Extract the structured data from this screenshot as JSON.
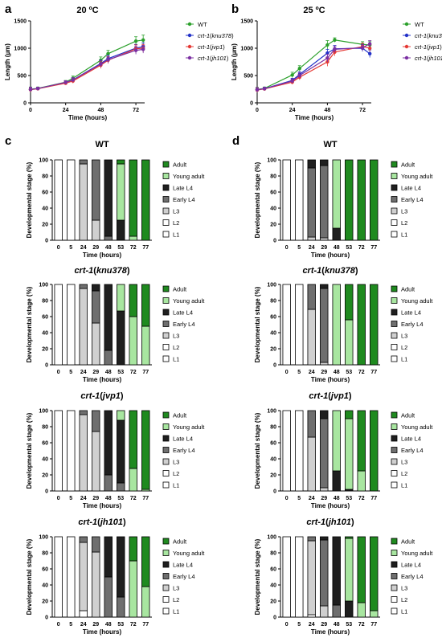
{
  "colors": {
    "wt": "#2ca02c",
    "knu378": "#2231c8",
    "jvp1": "#e53935",
    "jh101": "#7b2fa2",
    "stages": [
      "#ffffff",
      "#ffffff",
      "#d0d0d0",
      "#6f6f6f",
      "#1f1f1f",
      "#a8e6a0",
      "#1f8a1f"
    ]
  },
  "growth_charts": [
    {
      "panel": "a",
      "title": "20 ºC",
      "ylabel": "Length (µm)",
      "xlabel": "Time (hours)",
      "yticks": [
        "0",
        "500",
        "1000",
        "1500"
      ],
      "xticks": [
        "0",
        "24",
        "48",
        "72"
      ],
      "legend": [
        {
          "name": "WT",
          "italic": false,
          "color": "wt"
        },
        {
          "prefix": "crt-1",
          "allele": "knu378",
          "color": "knu378"
        },
        {
          "prefix": "crt-1",
          "allele": "jvp1",
          "color": "jvp1"
        },
        {
          "prefix": "crt-1",
          "allele": "jh101",
          "color": "jh101"
        }
      ]
    },
    {
      "panel": "b",
      "title": "25 ºC",
      "ylabel": "Length (µm)",
      "xlabel": "Time (hours)",
      "yticks": [
        "0",
        "500",
        "1000",
        "1500"
      ],
      "xticks": [
        "0",
        "24",
        "48",
        "72"
      ],
      "legend": [
        {
          "name": "WT",
          "italic": false,
          "color": "wt"
        },
        {
          "prefix": "crt-1",
          "allele": "knu378",
          "color": "knu378"
        },
        {
          "prefix": "crt-1",
          "allele": "jvp1",
          "color": "jvp1"
        },
        {
          "prefix": "crt-1",
          "allele": "jh101",
          "color": "jh101"
        }
      ]
    }
  ],
  "stage_legend": [
    "Adult",
    "Young adult",
    "Late L4",
    "Early L4",
    "L3",
    "L2",
    "L1"
  ],
  "stage_axes": {
    "ylabel": "Developmental stage (%)",
    "xlabel": "Time (hours)",
    "yticks": [
      "0",
      "20",
      "40",
      "60",
      "80",
      "100"
    ]
  },
  "column_labels": [
    "c",
    "d"
  ],
  "chart_data": [
    {
      "type": "line",
      "title": "20 ºC",
      "xlabel": "Time (hours)",
      "ylabel": "Length (µm)",
      "xlim": [
        0,
        78
      ],
      "ylim": [
        0,
        1500
      ],
      "series": [
        {
          "name": "WT",
          "x": [
            0,
            5,
            24,
            29,
            48,
            53,
            72,
            77
          ],
          "y": [
            250,
            265,
            380,
            450,
            780,
            900,
            1130,
            1150
          ],
          "err": [
            40,
            25,
            30,
            40,
            60,
            60,
            80,
            90
          ]
        },
        {
          "name": "crt-1(knu378)",
          "x": [
            0,
            5,
            24,
            29,
            48,
            53,
            72,
            77
          ],
          "y": [
            245,
            260,
            370,
            420,
            720,
            810,
            1000,
            1030
          ],
          "err": [
            40,
            25,
            30,
            40,
            60,
            60,
            70,
            70
          ]
        },
        {
          "name": "crt-1(jvp1)",
          "x": [
            0,
            5,
            24,
            29,
            48,
            53,
            72,
            77
          ],
          "y": [
            240,
            258,
            360,
            400,
            690,
            780,
            990,
            1000
          ],
          "err": [
            40,
            25,
            30,
            40,
            60,
            60,
            70,
            70
          ]
        },
        {
          "name": "crt-1(jh101)",
          "x": [
            0,
            5,
            24,
            29,
            48,
            53,
            72,
            77
          ],
          "y": [
            245,
            262,
            375,
            420,
            710,
            790,
            960,
            980
          ],
          "err": [
            40,
            25,
            30,
            40,
            60,
            60,
            70,
            70
          ]
        }
      ]
    },
    {
      "type": "line",
      "title": "25 ºC",
      "xlabel": "Time (hours)",
      "ylabel": "Length (µm)",
      "xlim": [
        0,
        78
      ],
      "ylim": [
        0,
        1500
      ],
      "series": [
        {
          "name": "WT",
          "x": [
            0,
            5,
            24,
            29,
            48,
            53,
            72,
            77
          ],
          "y": [
            245,
            265,
            510,
            630,
            1060,
            1150,
            1070,
            1060
          ],
          "err": [
            40,
            25,
            50,
            50,
            80,
            40,
            50,
            60
          ]
        },
        {
          "name": "crt-1(knu378)",
          "x": [
            0,
            5,
            24,
            29,
            48,
            53,
            72,
            77
          ],
          "y": [
            240,
            260,
            410,
            520,
            910,
            990,
            1000,
            900
          ],
          "err": [
            40,
            25,
            40,
            50,
            70,
            60,
            60,
            70
          ]
        },
        {
          "name": "crt-1(jvp1)",
          "x": [
            0,
            5,
            24,
            29,
            48,
            53,
            72,
            77
          ],
          "y": [
            235,
            255,
            380,
            470,
            750,
            930,
            1030,
            1000
          ],
          "err": [
            40,
            25,
            40,
            50,
            80,
            70,
            60,
            60
          ]
        },
        {
          "name": "crt-1(jh101)",
          "x": [
            0,
            5,
            24,
            29,
            48,
            53,
            72,
            77
          ],
          "y": [
            240,
            258,
            400,
            500,
            820,
            980,
            1010,
            1080
          ],
          "err": [
            40,
            25,
            40,
            50,
            70,
            60,
            60,
            60
          ]
        }
      ]
    },
    {
      "type": "bar",
      "panel": "c",
      "title": "WT",
      "categories": [
        "0",
        "5",
        "24",
        "29",
        "48",
        "53",
        "72",
        "77"
      ],
      "stages": [
        "L1",
        "L2",
        "L3",
        "Early L4",
        "Late L4",
        "Young adult",
        "Adult"
      ],
      "values": [
        [
          100,
          0,
          0,
          0,
          0,
          0,
          0
        ],
        [
          100,
          0,
          0,
          0,
          0,
          0,
          0
        ],
        [
          0,
          0,
          95,
          5,
          0,
          0,
          0
        ],
        [
          0,
          0,
          25,
          75,
          0,
          0,
          0
        ],
        [
          0,
          0,
          0,
          5,
          95,
          0,
          0
        ],
        [
          0,
          0,
          0,
          0,
          25,
          70,
          5
        ],
        [
          0,
          0,
          0,
          0,
          0,
          5,
          95
        ],
        [
          0,
          0,
          0,
          0,
          0,
          0,
          100
        ]
      ]
    },
    {
      "type": "bar",
      "panel": "d",
      "title": "WT",
      "categories": [
        "0",
        "5",
        "24",
        "29",
        "48",
        "53",
        "72",
        "77"
      ],
      "stages": [
        "L1",
        "L2",
        "L3",
        "Early L4",
        "Late L4",
        "Young adult",
        "Adult"
      ],
      "values": [
        [
          100,
          0,
          0,
          0,
          0,
          0,
          0
        ],
        [
          100,
          0,
          0,
          0,
          0,
          0,
          0
        ],
        [
          0,
          0,
          4,
          86,
          10,
          0,
          0
        ],
        [
          0,
          0,
          3,
          90,
          7,
          0,
          0
        ],
        [
          0,
          0,
          0,
          0,
          15,
          85,
          0
        ],
        [
          0,
          0,
          0,
          0,
          0,
          0,
          100
        ],
        [
          0,
          0,
          0,
          0,
          0,
          0,
          100
        ],
        [
          0,
          0,
          0,
          0,
          0,
          0,
          100
        ]
      ]
    },
    {
      "type": "bar",
      "panel": "c",
      "title": "crt-1(knu378)",
      "categories": [
        "0",
        "5",
        "24",
        "29",
        "48",
        "53",
        "72",
        "77"
      ],
      "stages": [
        "L1",
        "L2",
        "L3",
        "Early L4",
        "Late L4",
        "Young adult",
        "Adult"
      ],
      "values": [
        [
          100,
          0,
          0,
          0,
          0,
          0,
          0
        ],
        [
          100,
          0,
          0,
          0,
          0,
          0,
          0
        ],
        [
          0,
          0,
          95,
          5,
          0,
          0,
          0
        ],
        [
          0,
          0,
          52,
          40,
          8,
          0,
          0
        ],
        [
          0,
          0,
          0,
          18,
          82,
          0,
          0
        ],
        [
          0,
          0,
          0,
          0,
          67,
          33,
          0
        ],
        [
          0,
          0,
          0,
          0,
          0,
          60,
          40
        ],
        [
          0,
          0,
          0,
          0,
          0,
          48,
          52
        ]
      ]
    },
    {
      "type": "bar",
      "panel": "d",
      "title": "crt-1(knu378)",
      "categories": [
        "0",
        "5",
        "24",
        "29",
        "48",
        "53",
        "72",
        "77"
      ],
      "stages": [
        "L1",
        "L2",
        "L3",
        "Early L4",
        "Late L4",
        "Young adult",
        "Adult"
      ],
      "values": [
        [
          100,
          0,
          0,
          0,
          0,
          0,
          0
        ],
        [
          100,
          0,
          0,
          0,
          0,
          0,
          0
        ],
        [
          0,
          0,
          69,
          31,
          0,
          0,
          0
        ],
        [
          0,
          0,
          3,
          92,
          5,
          0,
          0
        ],
        [
          0,
          0,
          0,
          0,
          0,
          100,
          0
        ],
        [
          0,
          0,
          0,
          0,
          0,
          56,
          44
        ],
        [
          0,
          0,
          0,
          0,
          0,
          0,
          100
        ],
        [
          0,
          0,
          0,
          0,
          0,
          0,
          100
        ]
      ]
    },
    {
      "type": "bar",
      "panel": "c",
      "title": "crt-1(jvp1)",
      "categories": [
        "0",
        "5",
        "24",
        "29",
        "48",
        "53",
        "72",
        "77"
      ],
      "stages": [
        "L1",
        "L2",
        "L3",
        "Early L4",
        "Late L4",
        "Young adult",
        "Adult"
      ],
      "values": [
        [
          100,
          0,
          0,
          0,
          0,
          0,
          0
        ],
        [
          100,
          0,
          0,
          0,
          0,
          0,
          0
        ],
        [
          0,
          0,
          95,
          5,
          0,
          0,
          0
        ],
        [
          0,
          0,
          74,
          26,
          0,
          0,
          0
        ],
        [
          0,
          0,
          0,
          20,
          80,
          0,
          0
        ],
        [
          0,
          0,
          0,
          10,
          78,
          12,
          0
        ],
        [
          0,
          0,
          0,
          0,
          0,
          28,
          72
        ],
        [
          0,
          0,
          0,
          0,
          0,
          2,
          98
        ]
      ]
    },
    {
      "type": "bar",
      "panel": "d",
      "title": "crt-1(jvp1)",
      "categories": [
        "0",
        "5",
        "24",
        "29",
        "48",
        "53",
        "72",
        "77"
      ],
      "stages": [
        "L1",
        "L2",
        "L3",
        "Early L4",
        "Late L4",
        "Young adult",
        "Adult"
      ],
      "values": [
        [
          100,
          0,
          0,
          0,
          0,
          0,
          0
        ],
        [
          100,
          0,
          0,
          0,
          0,
          0,
          0
        ],
        [
          0,
          0,
          67,
          33,
          0,
          0,
          0
        ],
        [
          0,
          0,
          4,
          86,
          10,
          0,
          0
        ],
        [
          0,
          0,
          0,
          0,
          25,
          75,
          0
        ],
        [
          0,
          0,
          0,
          0,
          2,
          88,
          10
        ],
        [
          0,
          0,
          0,
          0,
          0,
          25,
          75
        ],
        [
          0,
          0,
          0,
          0,
          0,
          0,
          100
        ]
      ]
    },
    {
      "type": "bar",
      "panel": "c",
      "title": "crt-1(jh101)",
      "categories": [
        "0",
        "5",
        "24",
        "29",
        "48",
        "53",
        "72",
        "77"
      ],
      "stages": [
        "L1",
        "L2",
        "L3",
        "Early L4",
        "Late L4",
        "Young adult",
        "Adult"
      ],
      "values": [
        [
          100,
          0,
          0,
          0,
          0,
          0,
          0
        ],
        [
          100,
          0,
          0,
          0,
          0,
          0,
          0
        ],
        [
          8,
          0,
          85,
          7,
          0,
          0,
          0
        ],
        [
          0,
          0,
          81,
          19,
          0,
          0,
          0
        ],
        [
          0,
          0,
          0,
          50,
          50,
          0,
          0
        ],
        [
          0,
          0,
          0,
          25,
          75,
          0,
          0
        ],
        [
          0,
          0,
          0,
          0,
          0,
          70,
          30
        ],
        [
          0,
          0,
          0,
          0,
          0,
          38,
          62
        ]
      ]
    },
    {
      "type": "bar",
      "panel": "d",
      "title": "crt-1(jh101)",
      "categories": [
        "0",
        "5",
        "24",
        "29",
        "48",
        "53",
        "72",
        "77"
      ],
      "stages": [
        "L1",
        "L2",
        "L3",
        "Early L4",
        "Late L4",
        "Young adult",
        "Adult"
      ],
      "values": [
        [
          100,
          0,
          0,
          0,
          0,
          0,
          0
        ],
        [
          100,
          0,
          0,
          0,
          0,
          0,
          0
        ],
        [
          3,
          0,
          92,
          5,
          0,
          0,
          0
        ],
        [
          0,
          0,
          14,
          82,
          4,
          0,
          0
        ],
        [
          0,
          0,
          0,
          15,
          85,
          0,
          0
        ],
        [
          0,
          0,
          0,
          0,
          20,
          78,
          2
        ],
        [
          0,
          0,
          0,
          0,
          0,
          18,
          82
        ],
        [
          0,
          0,
          0,
          0,
          0,
          8,
          92
        ]
      ]
    }
  ]
}
